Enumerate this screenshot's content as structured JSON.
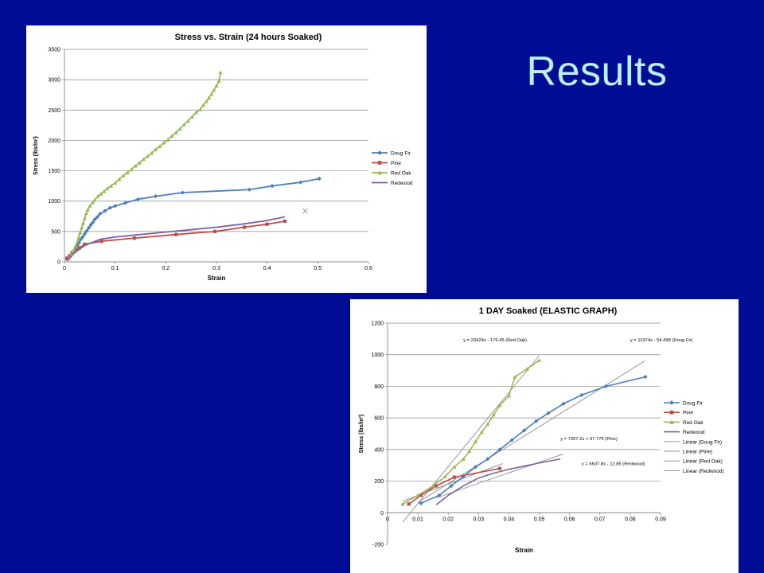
{
  "slide": {
    "title": "Results"
  },
  "chart_data": [
    {
      "type": "line",
      "title": "Stress vs. Strain (24 hours Soaked)",
      "xlabel": "Strain",
      "ylabel": "Stress (lbs/in²)",
      "xlim": [
        0,
        0.6
      ],
      "ylim": [
        0,
        3500
      ],
      "xticks": [
        0,
        0.1,
        0.2,
        0.3,
        0.4,
        0.5,
        0.6
      ],
      "xtick_labels": [
        "0",
        "0.1",
        "0.2",
        "0.3",
        "0.4",
        "0.5",
        "0.6"
      ],
      "yticks": [
        0,
        500,
        1000,
        1500,
        2000,
        2500,
        3000,
        3500
      ],
      "ytick_labels": [
        "0",
        "500",
        "1000",
        "1500",
        "2000",
        "2500",
        "3000",
        "3500"
      ],
      "grid": "horizontal",
      "legend": "right",
      "series": [
        {
          "name": "Doug Fir",
          "color": "#4a7ebb",
          "marker": "diamond",
          "x": [
            0.005,
            0.008,
            0.011,
            0.014,
            0.017,
            0.02,
            0.023,
            0.026,
            0.029,
            0.032,
            0.036,
            0.04,
            0.044,
            0.048,
            0.052,
            0.056,
            0.06,
            0.065,
            0.07,
            0.08,
            0.09,
            0.1,
            0.12,
            0.145,
            0.18,
            0.233,
            0.365,
            0.41,
            0.466,
            0.503
          ],
          "y": [
            40,
            60,
            90,
            120,
            160,
            200,
            240,
            280,
            320,
            370,
            410,
            460,
            510,
            560,
            610,
            650,
            700,
            740,
            790,
            840,
            890,
            920,
            970,
            1030,
            1080,
            1140,
            1190,
            1250,
            1310,
            1370
          ]
        },
        {
          "name": "Pine",
          "color": "#be4b48",
          "marker": "square",
          "x": [
            0.005,
            0.01,
            0.015,
            0.02,
            0.03,
            0.04,
            0.073,
            0.138,
            0.22,
            0.297,
            0.355,
            0.4,
            0.435
          ],
          "y": [
            60,
            100,
            150,
            180,
            230,
            290,
            340,
            390,
            450,
            500,
            570,
            620,
            670
          ]
        },
        {
          "name": "Red Oak",
          "color": "#98b954",
          "marker": "triangle",
          "x": [
            0.008,
            0.012,
            0.016,
            0.019,
            0.022,
            0.025,
            0.028,
            0.031,
            0.034,
            0.037,
            0.04,
            0.043,
            0.046,
            0.05,
            0.056,
            0.06,
            0.066,
            0.072,
            0.078,
            0.085,
            0.092,
            0.1,
            0.108,
            0.116,
            0.124,
            0.132,
            0.14,
            0.148,
            0.156,
            0.164,
            0.172,
            0.18,
            0.188,
            0.196,
            0.204,
            0.212,
            0.22,
            0.228,
            0.236,
            0.244,
            0.252,
            0.26,
            0.268,
            0.274,
            0.28,
            0.285,
            0.29,
            0.295,
            0.3,
            0.305,
            0.308
          ],
          "y": [
            50,
            100,
            150,
            200,
            260,
            320,
            400,
            480,
            560,
            640,
            720,
            800,
            860,
            920,
            980,
            1020,
            1080,
            1120,
            1160,
            1210,
            1250,
            1300,
            1360,
            1420,
            1470,
            1520,
            1580,
            1630,
            1690,
            1740,
            1790,
            1850,
            1900,
            1960,
            2010,
            2070,
            2130,
            2190,
            2260,
            2320,
            2390,
            2460,
            2510,
            2580,
            2640,
            2700,
            2760,
            2830,
            2900,
            2980,
            3120
          ]
        },
        {
          "name": "Redwood",
          "color": "#7d60a0",
          "marker": "none",
          "x": [
            0.005,
            0.02,
            0.04,
            0.07,
            0.1,
            0.15,
            0.2,
            0.25,
            0.3,
            0.35,
            0.4,
            0.435
          ],
          "y": [
            20,
            150,
            270,
            370,
            410,
            450,
            490,
            530,
            570,
            620,
            680,
            740
          ]
        }
      ],
      "annotations": [
        {
          "x": 0.475,
          "y": 840,
          "marker": "×"
        }
      ]
    },
    {
      "type": "scatter",
      "title": "1 DAY Soaked (ELASTIC GRAPH)",
      "xlabel": "Strain",
      "ylabel": "Stress (lbs/in²)",
      "xlim": [
        0,
        0.09
      ],
      "ylim": [
        -200,
        1200
      ],
      "xticks": [
        0,
        0.01,
        0.02,
        0.03,
        0.04,
        0.05,
        0.06,
        0.07,
        0.08,
        0.09
      ],
      "xtick_labels": [
        "0",
        "0.01",
        "0.02",
        "0.03",
        "0.04",
        "0.05",
        "0.06",
        "0.07",
        "0.08",
        "0.09"
      ],
      "yticks": [
        -200,
        0,
        200,
        400,
        600,
        800,
        1000,
        1200
      ],
      "ytick_labels": [
        "-200",
        "0",
        "200",
        "400",
        "600",
        "800",
        "1000",
        "1200"
      ],
      "grid": "horizontal",
      "legend": "right",
      "series": [
        {
          "name": "Doug Fir",
          "color": "#4a7ebb",
          "marker": "diamond",
          "x": [
            0.011,
            0.017,
            0.021,
            0.025,
            0.029,
            0.033,
            0.037,
            0.041,
            0.045,
            0.049,
            0.053,
            0.058,
            0.064,
            0.072,
            0.085
          ],
          "y": [
            60,
            110,
            170,
            230,
            290,
            340,
            400,
            460,
            520,
            580,
            630,
            690,
            745,
            800,
            860
          ]
        },
        {
          "name": "Pine",
          "color": "#be4b48",
          "marker": "square",
          "x": [
            0.007,
            0.011,
            0.016,
            0.022,
            0.037
          ],
          "y": [
            55,
            110,
            170,
            225,
            280
          ]
        },
        {
          "name": "Red Oak",
          "color": "#98b954",
          "marker": "triangle",
          "x": [
            0.005,
            0.01,
            0.015,
            0.019,
            0.022,
            0.025,
            0.027,
            0.029,
            0.031,
            0.033,
            0.035,
            0.037,
            0.04,
            0.042,
            0.046,
            0.05
          ],
          "y": [
            55,
            110,
            170,
            230,
            290,
            340,
            390,
            450,
            510,
            560,
            620,
            680,
            740,
            860,
            910,
            965
          ]
        },
        {
          "name": "Redwood",
          "color": "#7d60a0",
          "marker": "none",
          "x": [
            0.016,
            0.02,
            0.025,
            0.03,
            0.035,
            0.04,
            0.045,
            0.05,
            0.057
          ],
          "y": [
            50,
            110,
            170,
            220,
            250,
            275,
            295,
            315,
            340
          ]
        }
      ],
      "trendlines": [
        {
          "name": "Linear (Doug Fir)",
          "slope": 11974,
          "intercept": -54.498,
          "x": [
            0.01,
            0.085
          ],
          "color": "#8c8c8c",
          "equation": "y = 11974x - 54.498 (Doug Fir)"
        },
        {
          "name": "Linear (Pine)",
          "slope": 7207.2,
          "intercept": 37.776,
          "x": [
            0.005,
            0.038
          ],
          "color": "#8c8c8c",
          "equation": "y = 7207.2x + 37.776 (Pine)"
        },
        {
          "name": "Linear (Red Oak)",
          "slope": 23424,
          "intercept": -176.45,
          "x": [
            0.005,
            0.05
          ],
          "color": "#8c8c8c",
          "equation": "y = 23424x - 176.45 (Red Oak)"
        },
        {
          "name": "Linear (Redwood)",
          "slope": 6637.8,
          "intercept": -12.85,
          "x": [
            0.016,
            0.058
          ],
          "color": "#8c8c8c",
          "equation": "y = 6637.8x - 12.85 (Redwood)"
        }
      ],
      "equation_labels": [
        {
          "text": "y = 23424x - 176.45 (Red Oak)",
          "x": 0.025,
          "y": 1085
        },
        {
          "text": "y = 11974x - 54.498 (Doug Fir)",
          "x": 0.08,
          "y": 1085
        },
        {
          "text": "y = 7207.2x + 37.776 (Pine)",
          "x": 0.057,
          "y": 460
        },
        {
          "text": "y = 6637.8x - 12.85 (Redwood)",
          "x": 0.064,
          "y": 300
        }
      ]
    }
  ]
}
